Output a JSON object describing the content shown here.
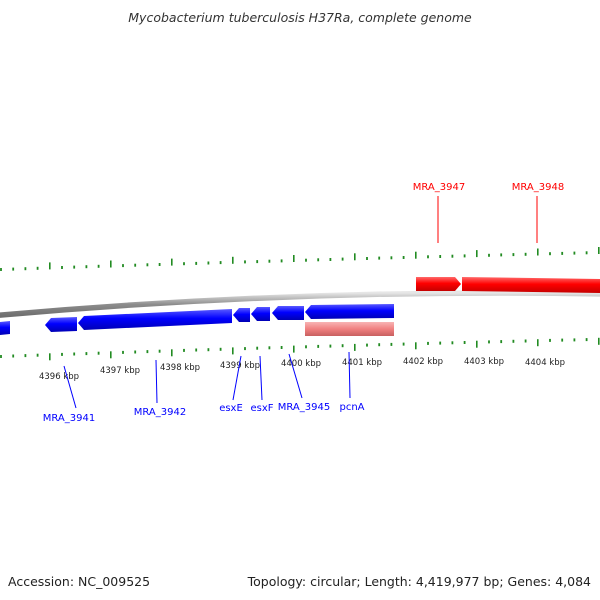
{
  "title": "Mycobacterium tuberculosis H37Ra, complete genome",
  "footer": {
    "accession": "Accession: NC_009525",
    "info": "Topology: circular; Length: 4,419,977 bp; Genes: 4,084"
  },
  "scale_labels": [
    "4396 kbp",
    "4397 kbp",
    "4398 kbp",
    "4399 kbp",
    "4400 kbp",
    "4401 kbp",
    "4402 kbp",
    "4403 kbp",
    "4404 kbp"
  ],
  "colors": {
    "forward_strand": "#ff0000",
    "reverse_strand": "#0000ff",
    "rna_feature": "#f08080",
    "backbone": "#808080",
    "ticks": "#228b22"
  },
  "genes": {
    "forward": [
      {
        "label": "MRA_3947"
      },
      {
        "label": "MRA_3948"
      }
    ],
    "reverse": [
      {
        "label": "MRA_3941"
      },
      {
        "label": "MRA_3942"
      },
      {
        "label": "esxE"
      },
      {
        "label": "esxF"
      },
      {
        "label": "MRA_3945"
      },
      {
        "label": "pcnA"
      }
    ]
  }
}
